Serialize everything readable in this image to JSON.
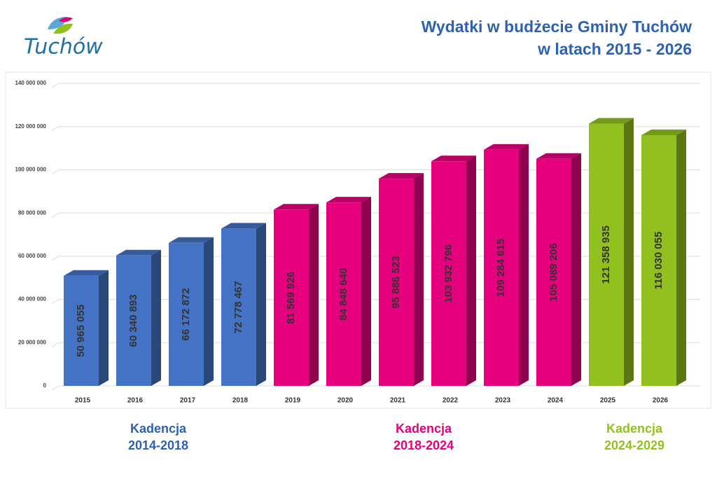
{
  "logo_text": "Tuchów",
  "chart_data": {
    "type": "bar3d",
    "title": [
      "Wydatki w budżecie Gminy Tuchów",
      "w latach 2015 - 2026"
    ],
    "categories": [
      "2015",
      "2016",
      "2017",
      "2018",
      "2019",
      "2020",
      "2021",
      "2022",
      "2023",
      "2024",
      "2025",
      "2026"
    ],
    "values": [
      50965055,
      60340893,
      66172872,
      72778467,
      81569926,
      84848640,
      95886523,
      103932796,
      109284615,
      105089206,
      121358935,
      116030055
    ],
    "value_labels": [
      "50 965 055",
      "60 340 893",
      "66 172 872",
      "72 778 467",
      "81 569 926",
      "84 848 640",
      "95 886 523",
      "103 932 796",
      "109 284 615",
      "105 089 206",
      "121 358 935",
      "116 030 055"
    ],
    "colors": [
      "#4472c4",
      "#4472c4",
      "#4472c4",
      "#4472c4",
      "#e6007e",
      "#e6007e",
      "#e6007e",
      "#e6007e",
      "#e6007e",
      "#e6007e",
      "#92c01f",
      "#92c01f"
    ],
    "ylim": [
      0,
      140000000
    ],
    "yticks": [
      0,
      {
        "value": 20000000,
        "label": "20 000 000"
      },
      {
        "value": 40000000,
        "label": "40 000 000"
      },
      {
        "value": 60000000,
        "label": "60 000 000"
      },
      {
        "value": 80000000,
        "label": "80 000 000"
      },
      {
        "value": 100000000,
        "label": "100 000 000"
      },
      {
        "value": 120000000,
        "label": "120 000 000"
      },
      {
        "value": 140000000,
        "label": "140 000 000"
      }
    ],
    "grid": true,
    "annotations": [
      {
        "lines": [
          "Kadencja",
          "2014-2018"
        ],
        "color": "#2d62b0"
      },
      {
        "lines": [
          "Kadencja",
          "2018-2024"
        ],
        "color": "#e6007e"
      },
      {
        "lines": [
          "Kadencja",
          "2024-2029"
        ],
        "color": "#92c01f"
      }
    ]
  }
}
